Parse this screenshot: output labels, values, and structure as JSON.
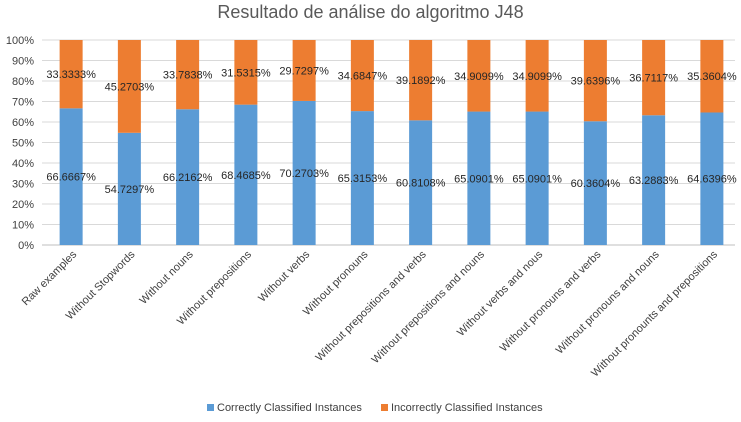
{
  "chart_data": {
    "type": "bar",
    "stacked": true,
    "normalized": true,
    "title": "Resultado de análise do algoritmo J48",
    "xlabel": "",
    "ylabel": "",
    "ylim": [
      0,
      100
    ],
    "yticks": [
      "0%",
      "10%",
      "20%",
      "30%",
      "40%",
      "50%",
      "60%",
      "70%",
      "80%",
      "90%",
      "100%"
    ],
    "grid": true,
    "legend_position": "bottom",
    "categories": [
      "Raw examples",
      "Without Stopwords",
      "Without nouns",
      "Without prepositions",
      "Without verbs",
      "Without pronouns",
      "Without prepositions and verbs",
      "Without prepositions and nouns",
      "Without verbs and nous",
      "Without pronouns and verbs",
      "Without pronouns and nouns",
      "Without pronounts and prepositions"
    ],
    "series": [
      {
        "name": "Correctly Classified Instances",
        "color": "#5B9BD5",
        "values": [
          66.6667,
          54.7297,
          66.2162,
          68.4685,
          70.2703,
          65.3153,
          60.8108,
          65.0901,
          65.0901,
          60.3604,
          63.2883,
          64.6396
        ],
        "labels": [
          "66.6667%",
          "54.7297%",
          "66.2162%",
          "68.4685%",
          "70.2703%",
          "65.3153%",
          "60.8108%",
          "65.0901%",
          "65.0901%",
          "60.3604%",
          "63.2883%",
          "64.6396%"
        ]
      },
      {
        "name": "Incorrectly Classified Instances",
        "color": "#ED7D31",
        "values": [
          33.3333,
          45.2703,
          33.7838,
          31.5315,
          29.7297,
          34.6847,
          39.1892,
          34.9099,
          34.9099,
          39.6396,
          36.7117,
          35.3604
        ],
        "labels": [
          "33.3333%",
          "45.2703%",
          "33.7838%",
          "31.5315%",
          "29.7297%",
          "34.6847%",
          "39.1892%",
          "34.9099%",
          "34.9099%",
          "39.6396%",
          "36.7117%",
          "35.3604%"
        ]
      }
    ]
  }
}
